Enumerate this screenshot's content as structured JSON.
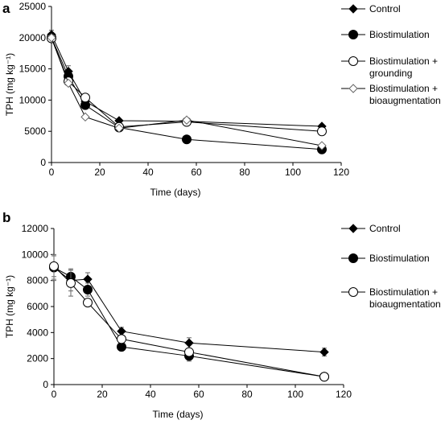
{
  "chart_data": [
    {
      "panel": "a",
      "type": "line",
      "xlabel": "Time (days)",
      "ylabel": "TPH (mg kg⁻¹)",
      "xlim": [
        0,
        120
      ],
      "ylim": [
        0,
        25000
      ],
      "xticks": [
        0,
        20,
        40,
        60,
        80,
        100,
        120
      ],
      "yticks": [
        0,
        5000,
        10000,
        15000,
        20000,
        25000
      ],
      "grid": false,
      "legend_position": "right",
      "x": [
        0,
        7,
        14,
        28,
        56,
        112
      ],
      "series": [
        {
          "name": "Control",
          "marker": "diamond-filled",
          "values": [
            20500,
            14600,
            9800,
            6700,
            6600,
            5800
          ],
          "errors": [
            700,
            900,
            0,
            0,
            0,
            0
          ]
        },
        {
          "name": "Biostimulation",
          "marker": "circle-filled",
          "values": [
            20000,
            13800,
            9200,
            5600,
            3700,
            2100
          ],
          "errors": [
            500,
            500,
            0,
            0,
            0,
            0
          ]
        },
        {
          "name": "Biostimulation + grounding",
          "marker": "circle-open",
          "values": [
            19900,
            13000,
            10400,
            5700,
            6500,
            5000
          ],
          "errors": [
            0,
            0,
            0,
            0,
            500,
            0
          ]
        },
        {
          "name": "Biostimulation + bioaugmentation",
          "marker": "diamond-open",
          "values": [
            20000,
            12700,
            7300,
            5500,
            6800,
            2700
          ],
          "errors": [
            0,
            0,
            0,
            0,
            0,
            0
          ]
        }
      ]
    },
    {
      "panel": "b",
      "type": "line",
      "xlabel": "Time (days)",
      "ylabel": "TPH (mg kg⁻¹)",
      "xlim": [
        0,
        120
      ],
      "ylim": [
        0,
        12000
      ],
      "xticks": [
        0,
        20,
        40,
        60,
        80,
        100,
        120
      ],
      "yticks": [
        0,
        2000,
        4000,
        6000,
        8000,
        10000,
        12000
      ],
      "grid": false,
      "legend_position": "right",
      "x": [
        0,
        7,
        14,
        28,
        56,
        112
      ],
      "series": [
        {
          "name": "Control",
          "marker": "diamond-filled",
          "values": [
            9000,
            8000,
            8100,
            4100,
            3200,
            2500
          ],
          "errors": [
            900,
            800,
            500,
            300,
            400,
            300
          ]
        },
        {
          "name": "Biostimulation",
          "marker": "circle-filled",
          "values": [
            9000,
            8300,
            7300,
            2900,
            2200,
            600
          ],
          "errors": [
            1000,
            600,
            500,
            300,
            400,
            200
          ]
        },
        {
          "name": "Biostimulation + bioaugmentation",
          "marker": "circle-open",
          "values": [
            9100,
            7800,
            6300,
            3500,
            2500,
            600
          ],
          "errors": [
            800,
            1000,
            0,
            0,
            0,
            0
          ]
        }
      ]
    }
  ]
}
